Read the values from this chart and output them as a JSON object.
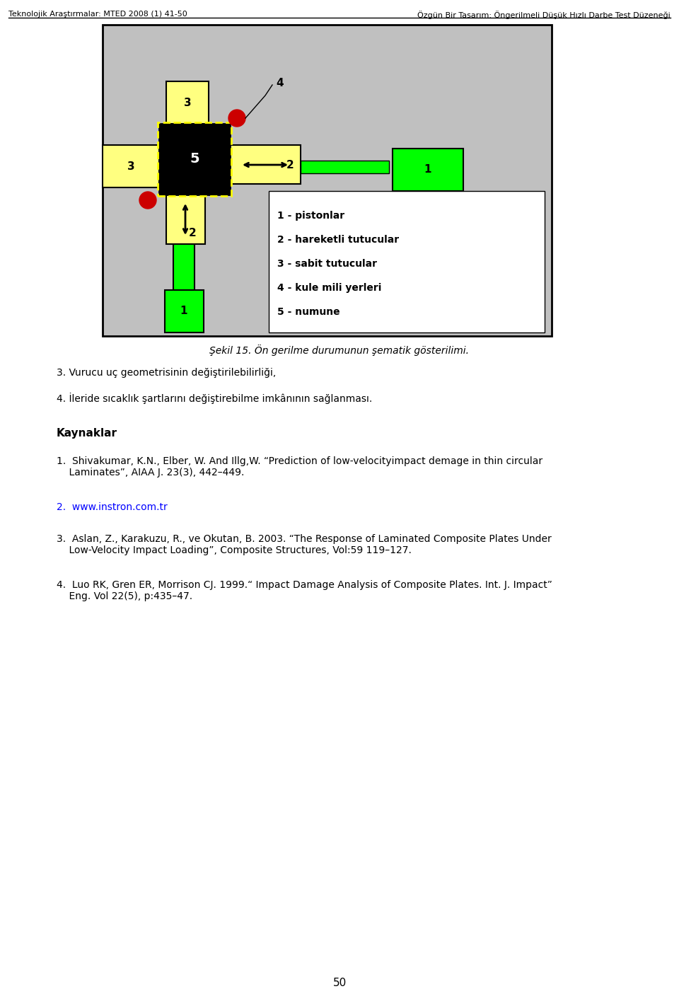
{
  "page_width": 9.6,
  "page_height": 14.15,
  "header_left": "Teknolojik Araştırmalar: MTED 2008 (1) 41-50",
  "header_right": "Özgün Bir Tasarım: Öngerilmeli Düşük Hızlı Darbe Test Düzeneği",
  "figure_caption": "Şekil 15. Ön gerilme durumunun şematik gösterilimi.",
  "legend_lines": [
    "1 - pistonlar",
    "2 - hareketli tutucular",
    "3 - sabit tutucular",
    "4 - kule mili yerleri",
    "5 - numune"
  ],
  "bg_color": "#c0c0c0",
  "yellow_color": "#ffff80",
  "black_color": "#000000",
  "green_color": "#00ff00",
  "red_color": "#cc0000",
  "white_color": "#ffffff",
  "body_items": [
    "3. Vurucu uç geometrisinin değiştirilebilirliği,",
    "4. İleride sıcaklık şartlarını değiştirebilme imkânının sağlanması."
  ],
  "kaynaklar_title": "Kaynaklar",
  "ref1": "1.  Shivakumar, K.N., Elber, W. And Illg,W. “Prediction of low-velocityimpact demage in thin circular\n    Laminates”, AIAA J. 23(3), 442–449.",
  "ref2": "2.  www.instron.com.tr",
  "ref3": "3.  Aslan, Z., Karakuzu, R., ve Okutan, B. 2003. “The Response of Laminated Composite Plates Under\n    Low-Velocity Impact Loading”, Composite Structures, Vol:59 119–127.",
  "ref4": "4.  Luo RK, Gren ER, Morrison CJ. 1999.“ Impact Damage Analysis of Composite Plates. Int. J. Impact”\n    Eng. Vol 22(5), p:435–47.",
  "page_number": "50"
}
